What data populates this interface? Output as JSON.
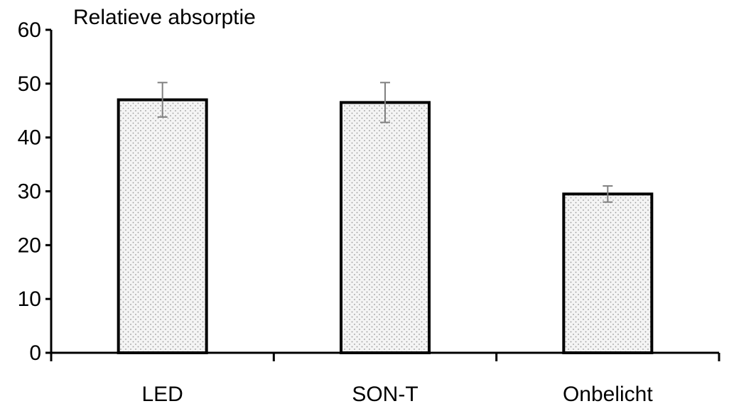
{
  "chart_data": {
    "type": "bar",
    "title": "",
    "xlabel": "",
    "ylabel": "Relatieve absorptie",
    "categories": [
      "LED",
      "SON-T",
      "Onbelicht"
    ],
    "values": [
      47,
      46.5,
      29.5
    ],
    "error": [
      3.2,
      3.7,
      1.5
    ],
    "ylim": [
      0,
      60
    ],
    "yticks": [
      0,
      10,
      20,
      30,
      40,
      50,
      60
    ],
    "grid": false,
    "legend": "none",
    "colors": {
      "bar_fill": "#f4f4f4",
      "bar_dots": "#9a9a9a",
      "bar_edge": "#000000",
      "error_bar": "#808080",
      "axis": "#000000"
    }
  }
}
